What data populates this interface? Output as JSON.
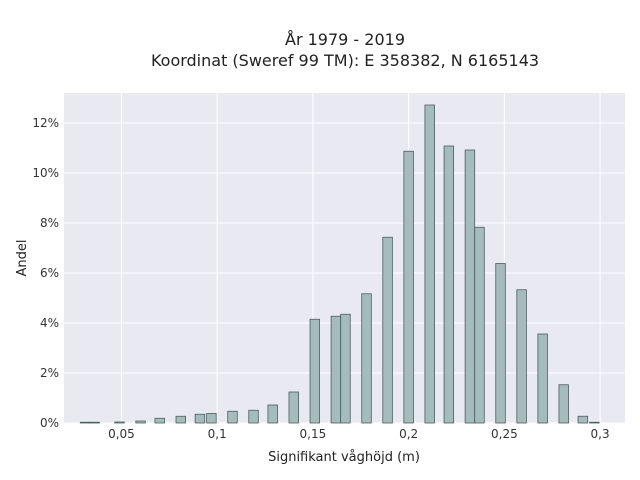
{
  "chart_data": {
    "type": "bar",
    "title_line1": "År 1979 - 2019",
    "title_line2": "Koordinat (Sweref 99 TM): E 358382, N 6165143",
    "xlabel": "Signifikant våghöjd (m)",
    "ylabel": "Andel",
    "xlim": [
      0.02,
      0.313
    ],
    "ylim": [
      0,
      13.2
    ],
    "x_ticks": [
      {
        "value": 0.05,
        "label": "0,05"
      },
      {
        "value": 0.1,
        "label": "0,1"
      },
      {
        "value": 0.15,
        "label": "0,15"
      },
      {
        "value": 0.2,
        "label": "0,2"
      },
      {
        "value": 0.25,
        "label": "0,25"
      },
      {
        "value": 0.3,
        "label": "0,3"
      }
    ],
    "y_ticks": [
      {
        "value": 0,
        "label": "0%"
      },
      {
        "value": 2,
        "label": "2%"
      },
      {
        "value": 4,
        "label": "4%"
      },
      {
        "value": 6,
        "label": "6%"
      },
      {
        "value": 8,
        "label": "8%"
      },
      {
        "value": 10,
        "label": "10%"
      },
      {
        "value": 12,
        "label": "12%"
      }
    ],
    "bar_width": 0.005,
    "x": [
      0.031,
      0.036,
      0.049,
      0.06,
      0.07,
      0.081,
      0.091,
      0.097,
      0.108,
      0.119,
      0.129,
      0.14,
      0.151,
      0.162,
      0.167,
      0.178,
      0.189,
      0.2,
      0.211,
      0.221,
      0.232,
      0.237,
      0.248,
      0.259,
      0.27,
      0.281,
      0.291,
      0.297
    ],
    "values": [
      0.03,
      0.03,
      0.04,
      0.08,
      0.19,
      0.27,
      0.35,
      0.38,
      0.47,
      0.51,
      0.72,
      1.24,
      4.15,
      4.27,
      4.35,
      5.17,
      7.43,
      10.87,
      12.72,
      11.08,
      10.92,
      7.83,
      6.38,
      5.33,
      3.56,
      1.53,
      0.27,
      0.03
    ],
    "colors": {
      "background": "#e9e9f1",
      "bar_fill": "#a4bcbc",
      "bar_stroke": "#4a5e5e",
      "grid": "#ffffff"
    }
  }
}
